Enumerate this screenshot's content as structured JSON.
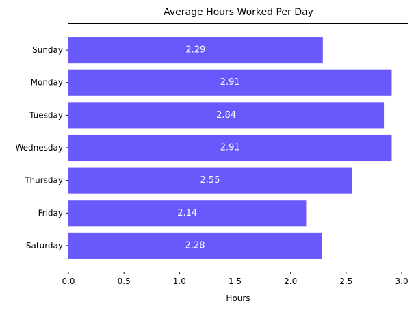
{
  "chart_data": {
    "type": "bar",
    "orientation": "horizontal",
    "title": "Average Hours Worked Per Day",
    "xlabel": "Hours",
    "ylabel": "",
    "categories": [
      "Sunday",
      "Monday",
      "Tuesday",
      "Wednesday",
      "Thursday",
      "Friday",
      "Saturday"
    ],
    "values": [
      2.29,
      2.91,
      2.84,
      2.91,
      2.55,
      2.14,
      2.28
    ],
    "data_labels": [
      "2.29",
      "2.91",
      "2.84",
      "2.91",
      "2.55",
      "2.14",
      "2.28"
    ],
    "xticks": [
      0.0,
      0.5,
      1.0,
      1.5,
      2.0,
      2.5,
      3.0
    ],
    "xtick_labels": [
      "0.0",
      "0.5",
      "1.0",
      "1.5",
      "2.0",
      "2.5",
      "3.0"
    ],
    "xlim": [
      0,
      3.055
    ],
    "grid": false,
    "legend": "none",
    "bar_color": "#6959fd"
  }
}
